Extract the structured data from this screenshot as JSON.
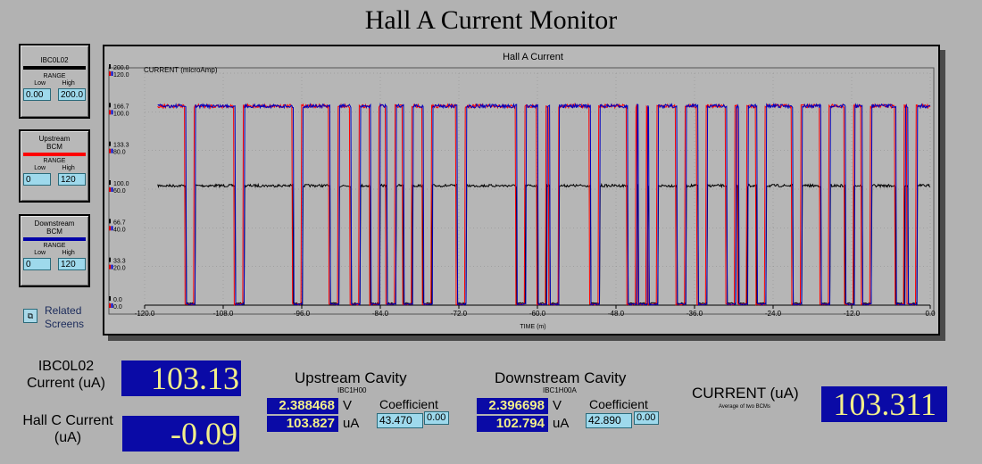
{
  "title": "Hall A Current Monitor",
  "panels": [
    {
      "name": "IBC0L02",
      "color": "#000000",
      "range_label": "RANGE",
      "low_label": "Low",
      "high_label": "High",
      "low": "0.00",
      "high": "200.0"
    },
    {
      "name": "Upstream BCM",
      "color": "#ff0000",
      "range_label": "RANGE",
      "low_label": "Low",
      "high_label": "High",
      "low": "0",
      "high": "120"
    },
    {
      "name": "Downstream BCM",
      "color": "#0000a8",
      "range_label": "RANGE",
      "low_label": "Low",
      "high_label": "High",
      "low": "0",
      "high": "120"
    }
  ],
  "related_screens": "Related Screens",
  "chart_data": {
    "type": "line",
    "title": "Hall A Current",
    "ylabel": "CURRENT (microAmp)",
    "xlabel": "TIME (m)",
    "xlim": [
      -120,
      0
    ],
    "x_ticks": [
      "-120.0",
      "-108.0",
      "-96.0",
      "-84.0",
      "-72.0",
      "-60.0",
      "-48.0",
      "-36.0",
      "-24.0",
      "-12.0",
      "0.0"
    ],
    "y_ticks_black": [
      "200.0",
      "166.7",
      "133.3",
      "100.0",
      "66.7",
      "33.3",
      "0.0"
    ],
    "y_ticks_red": [
      "120.0",
      "100.0",
      "80.0",
      "60.0",
      "40.0",
      "20.0",
      "0.0"
    ],
    "grid": true,
    "series": [
      {
        "name": "IBC0L02",
        "color": "#000000",
        "baseline": 103,
        "scale_max": 200
      },
      {
        "name": "Upstream BCM",
        "color": "#ff0000",
        "baseline": 103,
        "scale_max": 120
      },
      {
        "name": "Downstream BCM",
        "color": "#0000c0",
        "baseline": 103,
        "scale_max": 120
      }
    ],
    "trips_x": [
      -113.0,
      -105.5,
      -96.6,
      -91.0,
      -87.8,
      -84.8,
      -82.3,
      -79.8,
      -76.8,
      -71.6,
      -62.5,
      -59.3,
      -57.4,
      -51.2,
      -45.5,
      -43.9,
      -42.3,
      -38.0,
      -34.8,
      -30.4,
      -28.6,
      -25.8,
      -20.3,
      -16.0,
      -12.3,
      -9.7,
      -4.6,
      -2.7
    ]
  },
  "ibc": {
    "label": "IBC0L02 Current (uA)",
    "value": "103.13"
  },
  "hallc": {
    "label": "Hall C Current (uA)",
    "value": "-0.09"
  },
  "upstream": {
    "title": "Upstream Cavity",
    "sub": "IBC1H00",
    "volts": "2.388468",
    "volts_unit": "V",
    "amps": "103.827",
    "amps_unit": "uA",
    "coef_label": "Coefficient",
    "coef": "43.470",
    "offset": "0.00"
  },
  "downstream": {
    "title": "Downstream Cavity",
    "sub": "IBC1H00A",
    "volts": "2.396698",
    "volts_unit": "V",
    "amps": "102.794",
    "amps_unit": "uA",
    "coef_label": "Coefficient",
    "coef": "42.890",
    "offset": "0.00"
  },
  "current": {
    "label": "CURRENT (uA)",
    "sub": "Average of two BCMs",
    "value": "103.311"
  }
}
